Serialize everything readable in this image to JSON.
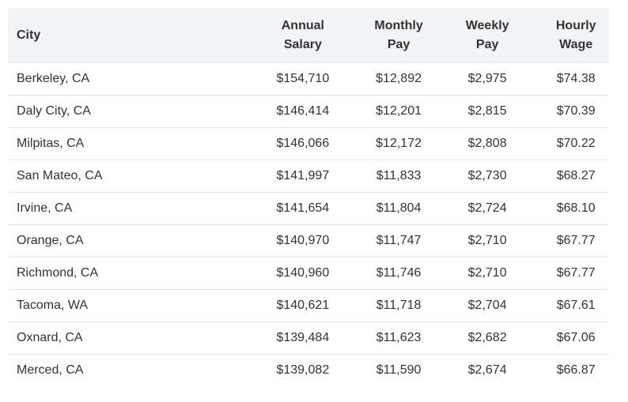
{
  "table": {
    "headers": {
      "city": "City",
      "annual": [
        "Annual",
        "Salary"
      ],
      "monthly": [
        "Monthly",
        "Pay"
      ],
      "weekly": [
        "Weekly",
        "Pay"
      ],
      "hourly": [
        "Hourly",
        "Wage"
      ]
    },
    "rows": [
      {
        "city": "Berkeley, CA",
        "annual": "$154,710",
        "monthly": "$12,892",
        "weekly": "$2,975",
        "hourly": "$74.38"
      },
      {
        "city": "Daly City, CA",
        "annual": "$146,414",
        "monthly": "$12,201",
        "weekly": "$2,815",
        "hourly": "$70.39"
      },
      {
        "city": "Milpitas, CA",
        "annual": "$146,066",
        "monthly": "$12,172",
        "weekly": "$2,808",
        "hourly": "$70.22"
      },
      {
        "city": "San Mateo, CA",
        "annual": "$141,997",
        "monthly": "$11,833",
        "weekly": "$2,730",
        "hourly": "$68.27"
      },
      {
        "city": "Irvine, CA",
        "annual": "$141,654",
        "monthly": "$11,804",
        "weekly": "$2,724",
        "hourly": "$68.10"
      },
      {
        "city": "Orange, CA",
        "annual": "$140,970",
        "monthly": "$11,747",
        "weekly": "$2,710",
        "hourly": "$67.77"
      },
      {
        "city": "Richmond, CA",
        "annual": "$140,960",
        "monthly": "$11,746",
        "weekly": "$2,710",
        "hourly": "$67.77"
      },
      {
        "city": "Tacoma, WA",
        "annual": "$140,621",
        "monthly": "$11,718",
        "weekly": "$2,704",
        "hourly": "$67.61"
      },
      {
        "city": "Oxnard, CA",
        "annual": "$139,484",
        "monthly": "$11,623",
        "weekly": "$2,682",
        "hourly": "$67.06"
      },
      {
        "city": "Merced, CA",
        "annual": "$139,082",
        "monthly": "$11,590",
        "weekly": "$2,674",
        "hourly": "$66.87"
      }
    ]
  },
  "colors": {
    "header_bg": "#f3f4f6",
    "row_border": "#e6e6e6",
    "text": "#333333"
  }
}
